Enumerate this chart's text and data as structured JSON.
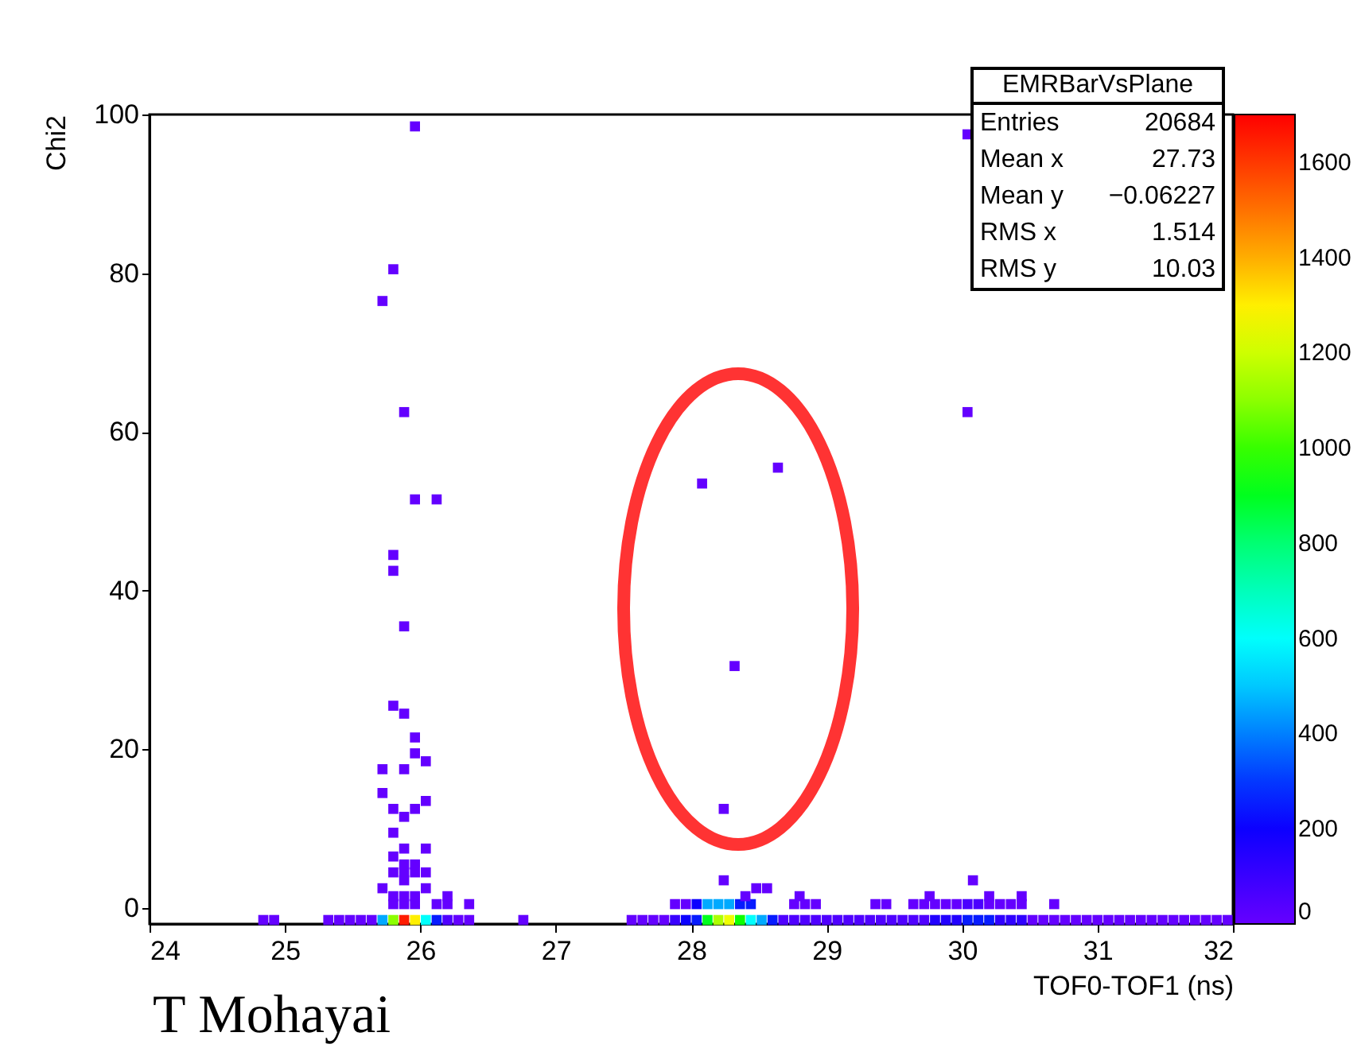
{
  "chart_data": {
    "type": "scatter",
    "xlabel": "TOF0-TOF1 (ns)",
    "ylabel": "Chi2",
    "xlim": [
      24,
      32
    ],
    "xticks": [
      24,
      25,
      26,
      27,
      28,
      29,
      30,
      31,
      32
    ],
    "ylim": [
      -2,
      100
    ],
    "yticks": [
      0,
      20,
      40,
      60,
      80,
      100
    ],
    "clim": [
      0,
      1700
    ],
    "cticks": [
      0,
      200,
      400,
      600,
      800,
      1000,
      1200,
      1400,
      1600
    ],
    "marker": "square",
    "annotations": [
      "EMRBarVsPlane",
      "Entries 20684",
      "Mean x 27.73",
      "Mean y −0.06227",
      "RMS x 1.514",
      "RMS y 10.03",
      "T Mohayai"
    ],
    "series": [
      {
        "x": [
          24.84,
          24.92,
          25.32,
          25.4,
          25.48,
          25.56,
          25.64,
          25.72,
          25.8,
          25.88,
          25.96,
          26.04,
          26.12,
          26.2,
          26.28,
          26.36,
          26.76,
          27.56,
          27.64,
          27.72,
          27.8,
          27.88,
          27.96,
          28.04,
          28.12,
          28.2,
          28.28,
          28.36,
          28.44,
          28.52,
          28.6,
          28.68,
          28.76,
          28.84,
          28.92,
          29.0,
          29.08,
          29.16,
          29.24,
          29.32,
          29.4,
          29.48,
          29.56,
          29.64,
          29.72,
          29.8,
          29.88,
          29.96,
          30.04,
          30.12,
          30.2,
          30.28,
          30.36,
          30.44,
          30.52,
          30.6,
          30.68,
          30.76,
          30.84,
          30.92,
          31.0,
          31.08,
          31.16,
          31.24,
          31.32,
          31.4,
          31.48,
          31.56,
          31.64,
          31.72,
          31.8,
          31.88,
          31.96,
          25.8,
          25.88,
          25.96,
          26.12,
          26.2,
          26.36,
          27.88,
          27.96,
          28.04,
          28.12,
          28.2,
          28.28,
          28.36,
          28.44,
          28.76,
          28.84,
          28.92,
          29.36,
          29.44,
          29.64,
          29.72,
          29.8,
          29.88,
          29.96,
          30.04,
          30.12,
          30.2,
          30.28,
          30.36,
          30.44,
          30.68,
          25.8,
          25.88,
          25.96,
          26.2,
          28.4,
          28.8,
          29.76,
          30.2,
          30.44,
          25.72,
          26.04,
          28.48,
          28.56,
          25.88,
          28.24,
          30.08,
          25.8,
          25.88,
          25.96,
          26.04,
          25.88,
          25.96,
          25.8,
          25.88,
          26.04,
          25.8,
          25.88,
          25.8,
          25.96,
          28.24,
          26.04,
          25.72,
          25.72,
          25.88,
          26.04,
          25.96,
          25.96,
          25.88,
          25.8,
          28.32,
          25.88,
          25.8,
          25.8,
          25.96,
          26.12,
          28.08,
          28.64,
          25.88,
          30.04,
          25.72,
          25.8,
          30.04,
          25.96
        ],
        "values": [
          -1.5,
          -1.5,
          -1.5,
          -1.5,
          -1.5,
          -1.5,
          -1.5,
          -1.5,
          -1.5,
          -1.5,
          -1.5,
          -1.5,
          -1.5,
          -1.5,
          -1.5,
          -1.5,
          -1.5,
          -1.5,
          -1.5,
          -1.5,
          -1.5,
          -1.5,
          -1.5,
          -1.5,
          -1.5,
          -1.5,
          -1.5,
          -1.5,
          -1.5,
          -1.5,
          -1.5,
          -1.5,
          -1.5,
          -1.5,
          -1.5,
          -1.5,
          -1.5,
          -1.5,
          -1.5,
          -1.5,
          -1.5,
          -1.5,
          -1.5,
          -1.5,
          -1.5,
          -1.5,
          -1.5,
          -1.5,
          -1.5,
          -1.5,
          -1.5,
          -1.5,
          -1.5,
          -1.5,
          -1.5,
          -1.5,
          -1.5,
          -1.5,
          -1.5,
          -1.5,
          -1.5,
          -1.5,
          -1.5,
          -1.5,
          -1.5,
          -1.5,
          -1.5,
          -1.5,
          -1.5,
          -1.5,
          -1.5,
          -1.5,
          -1.5,
          0.5,
          0.5,
          0.5,
          0.5,
          0.5,
          0.5,
          0.5,
          0.5,
          0.5,
          0.5,
          0.5,
          0.5,
          0.5,
          0.5,
          0.5,
          0.5,
          0.5,
          0.5,
          0.5,
          0.5,
          0.5,
          0.5,
          0.5,
          0.5,
          0.5,
          0.5,
          0.5,
          0.5,
          0.5,
          0.5,
          0.5,
          1.5,
          1.5,
          1.5,
          1.5,
          1.5,
          1.5,
          1.5,
          1.5,
          1.5,
          2.5,
          2.5,
          2.5,
          2.5,
          3.5,
          3.5,
          3.5,
          4.5,
          4.5,
          4.5,
          4.5,
          5.5,
          5.5,
          6.5,
          7.5,
          7.5,
          9.5,
          11.5,
          12.5,
          12.5,
          12.5,
          13.5,
          14.5,
          17.5,
          17.5,
          18.5,
          19.5,
          21.5,
          24.5,
          25.5,
          30.5,
          35.5,
          42.5,
          44.5,
          51.5,
          51.5,
          53.5,
          55.5,
          62.5,
          62.5,
          76.5,
          80.5,
          97.5,
          98.5
        ],
        "cvalues": [
          5,
          5,
          5,
          5,
          5,
          5,
          5,
          450,
          1100,
          1650,
          1300,
          600,
          250,
          50,
          5,
          5,
          5,
          5,
          5,
          5,
          5,
          100,
          200,
          250,
          900,
          1150,
          1250,
          950,
          600,
          450,
          250,
          50,
          50,
          50,
          50,
          50,
          50,
          50,
          50,
          50,
          50,
          50,
          50,
          50,
          50,
          150,
          150,
          150,
          250,
          250,
          250,
          120,
          120,
          120,
          5,
          5,
          5,
          5,
          5,
          5,
          5,
          5,
          5,
          5,
          5,
          5,
          5,
          5,
          5,
          5,
          5,
          5,
          5,
          5,
          5,
          5,
          5,
          5,
          5,
          5,
          5,
          200,
          450,
          450,
          450,
          250,
          250,
          5,
          5,
          5,
          5,
          5,
          5,
          5,
          5,
          5,
          5,
          60,
          60,
          5,
          5,
          5,
          5,
          5,
          5,
          5,
          5,
          5,
          5,
          5,
          5,
          5,
          5,
          5,
          5,
          5,
          5,
          5,
          5,
          5,
          5,
          5,
          5,
          5,
          5,
          5,
          5,
          5,
          5,
          5,
          5,
          5,
          5,
          5,
          5,
          5,
          5,
          5,
          5,
          5,
          5,
          5,
          5,
          5,
          5,
          5,
          5,
          5,
          5,
          5,
          5,
          5,
          5,
          5,
          5,
          5,
          5
        ]
      }
    ]
  }
}
